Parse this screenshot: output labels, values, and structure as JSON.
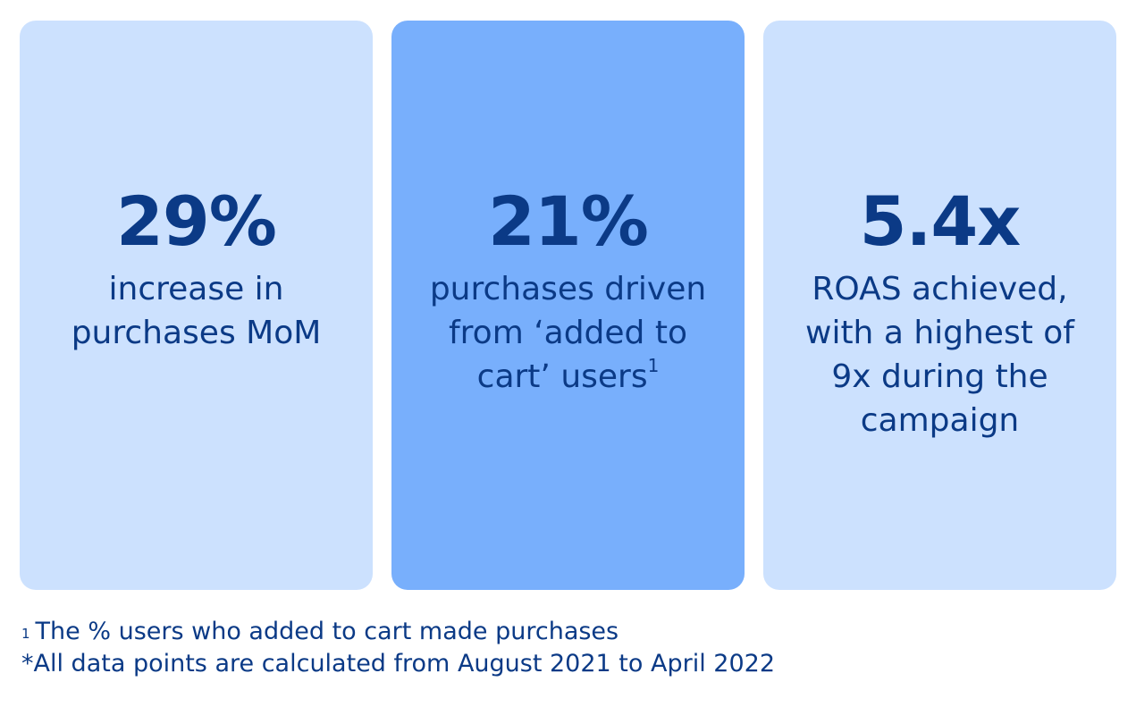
{
  "cards": [
    {
      "value": "29%",
      "line1": "increase in",
      "line2": "purchases MoM",
      "background": "#cce1fe"
    },
    {
      "value": "21%",
      "line1": "purchases driven",
      "line2": "from ‘added to",
      "line3": "cart’ users",
      "marker": "1",
      "background": "#78affc"
    },
    {
      "value": "5.4x",
      "line1": "ROAS achieved,",
      "line2": "with a highest of",
      "line3": "9x during the",
      "line4": "campaign",
      "background": "#cce1fe"
    }
  ],
  "footnotes": {
    "note1_marker": "1",
    "note1": "The % users who added to cart made purchases",
    "note2": "*All data points are calculated from August 2021 to April 2022"
  },
  "colors": {
    "text": "#0b3a86",
    "background": "#ffffff"
  }
}
